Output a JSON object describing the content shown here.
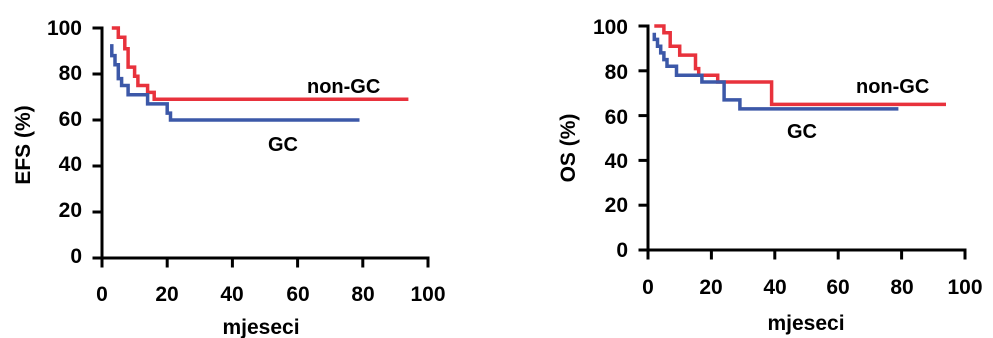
{
  "chart_data": [
    {
      "type": "line",
      "title": "",
      "xlabel": "mjeseci",
      "ylabel": "EFS (%)",
      "xlim": [
        0,
        100
      ],
      "ylim": [
        0,
        100
      ],
      "xticks": [
        "0",
        "20",
        "40",
        "60",
        "80",
        "100"
      ],
      "yticks": [
        "0",
        "20",
        "40",
        "60",
        "80",
        "100"
      ],
      "grid": false,
      "legend": "inline labels",
      "series": [
        {
          "name": "non-GC",
          "color": "#e8323c",
          "points": [
            [
              3,
              100
            ],
            [
              5,
              100
            ],
            [
              5,
              96
            ],
            [
              7,
              96
            ],
            [
              7,
              91
            ],
            [
              8,
              91
            ],
            [
              8,
              83
            ],
            [
              10,
              83
            ],
            [
              10,
              79
            ],
            [
              11,
              79
            ],
            [
              11,
              75
            ],
            [
              14,
              75
            ],
            [
              14,
              72
            ],
            [
              16,
              72
            ],
            [
              16,
              69
            ],
            [
              94,
              69
            ]
          ]
        },
        {
          "name": "GC",
          "color": "#3c58a8",
          "points": [
            [
              3,
              93
            ],
            [
              3,
              88
            ],
            [
              4,
              88
            ],
            [
              4,
              84
            ],
            [
              5,
              84
            ],
            [
              5,
              78
            ],
            [
              6,
              78
            ],
            [
              6,
              75
            ],
            [
              8,
              75
            ],
            [
              8,
              71
            ],
            [
              14,
              71
            ],
            [
              14,
              67
            ],
            [
              20,
              67
            ],
            [
              20,
              63
            ],
            [
              21,
              63
            ],
            [
              21,
              60
            ],
            [
              79,
              60
            ]
          ]
        }
      ]
    },
    {
      "type": "line",
      "title": "",
      "xlabel": "mjeseci",
      "ylabel": "OS (%)",
      "xlim": [
        0,
        100
      ],
      "ylim": [
        0,
        100
      ],
      "xticks": [
        "0",
        "20",
        "40",
        "60",
        "80",
        "100"
      ],
      "yticks": [
        "0",
        "20",
        "40",
        "60",
        "80",
        "100"
      ],
      "grid": false,
      "legend": "inline labels",
      "series": [
        {
          "name": "non-GC",
          "color": "#e8323c",
          "points": [
            [
              2,
              100
            ],
            [
              5,
              100
            ],
            [
              5,
              97
            ],
            [
              7,
              97
            ],
            [
              7,
              91
            ],
            [
              10,
              91
            ],
            [
              10,
              87
            ],
            [
              15,
              87
            ],
            [
              15,
              81
            ],
            [
              16,
              81
            ],
            [
              16,
              78
            ],
            [
              22,
              78
            ],
            [
              22,
              75
            ],
            [
              39,
              75
            ],
            [
              39,
              65
            ],
            [
              94,
              65
            ]
          ]
        },
        {
          "name": "GC",
          "color": "#3c58a8",
          "points": [
            [
              2,
              97
            ],
            [
              2,
              94
            ],
            [
              3,
              94
            ],
            [
              3,
              91
            ],
            [
              4,
              91
            ],
            [
              4,
              88
            ],
            [
              5,
              88
            ],
            [
              5,
              85
            ],
            [
              6,
              85
            ],
            [
              6,
              82
            ],
            [
              9,
              82
            ],
            [
              9,
              78
            ],
            [
              17,
              78
            ],
            [
              17,
              75
            ],
            [
              24,
              75
            ],
            [
              24,
              67
            ],
            [
              29,
              67
            ],
            [
              29,
              63
            ],
            [
              79,
              63
            ]
          ]
        }
      ]
    }
  ]
}
